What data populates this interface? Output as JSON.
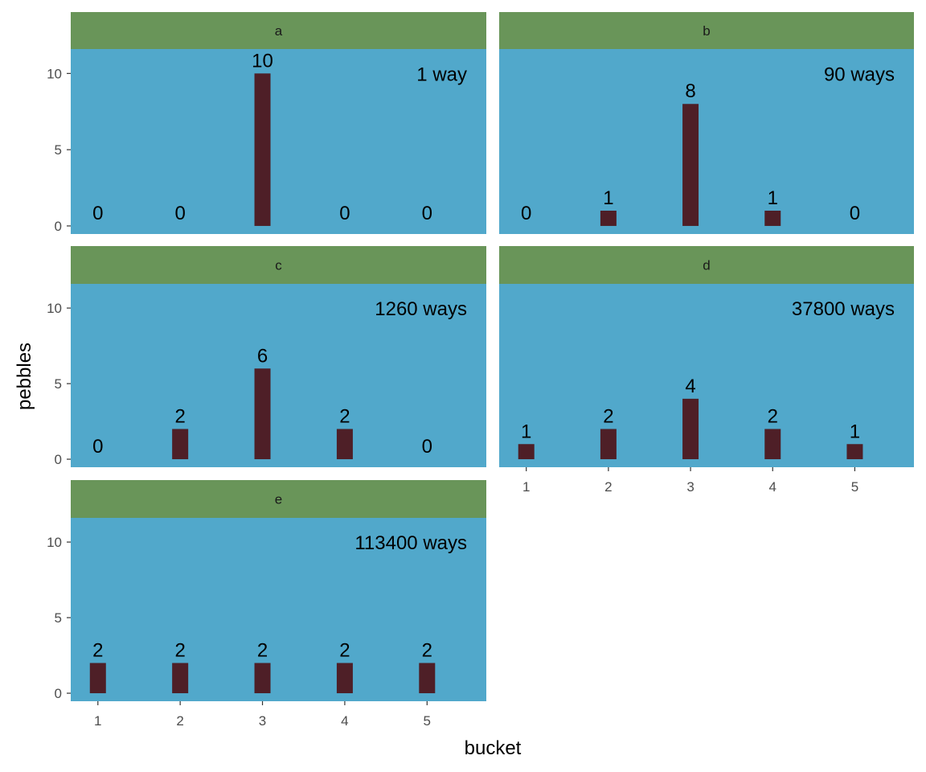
{
  "chart_data": {
    "type": "bar",
    "xlabel": "bucket",
    "ylabel": "pebbles",
    "categories": [
      "1",
      "2",
      "3",
      "4",
      "5"
    ],
    "yticks": [
      0,
      5,
      10
    ],
    "ylim": [
      -0.53,
      11.6
    ],
    "xlim": [
      0.67,
      5.72
    ],
    "colors": {
      "strip": "#699559",
      "panel": "#51a8cb",
      "bar": "#4e1f27",
      "text": "#000000",
      "tick": "#4d4d4d"
    },
    "facets": [
      {
        "name": "a",
        "values": [
          0,
          0,
          10,
          0,
          0
        ],
        "annotation": "1 way"
      },
      {
        "name": "b",
        "values": [
          0,
          1,
          8,
          1,
          0
        ],
        "annotation": "90 ways"
      },
      {
        "name": "c",
        "values": [
          0,
          2,
          6,
          2,
          0
        ],
        "annotation": "1260 ways"
      },
      {
        "name": "d",
        "values": [
          1,
          2,
          4,
          2,
          1
        ],
        "annotation": "37800 ways"
      },
      {
        "name": "e",
        "values": [
          2,
          2,
          2,
          2,
          2
        ],
        "annotation": "113400 ways"
      }
    ]
  }
}
